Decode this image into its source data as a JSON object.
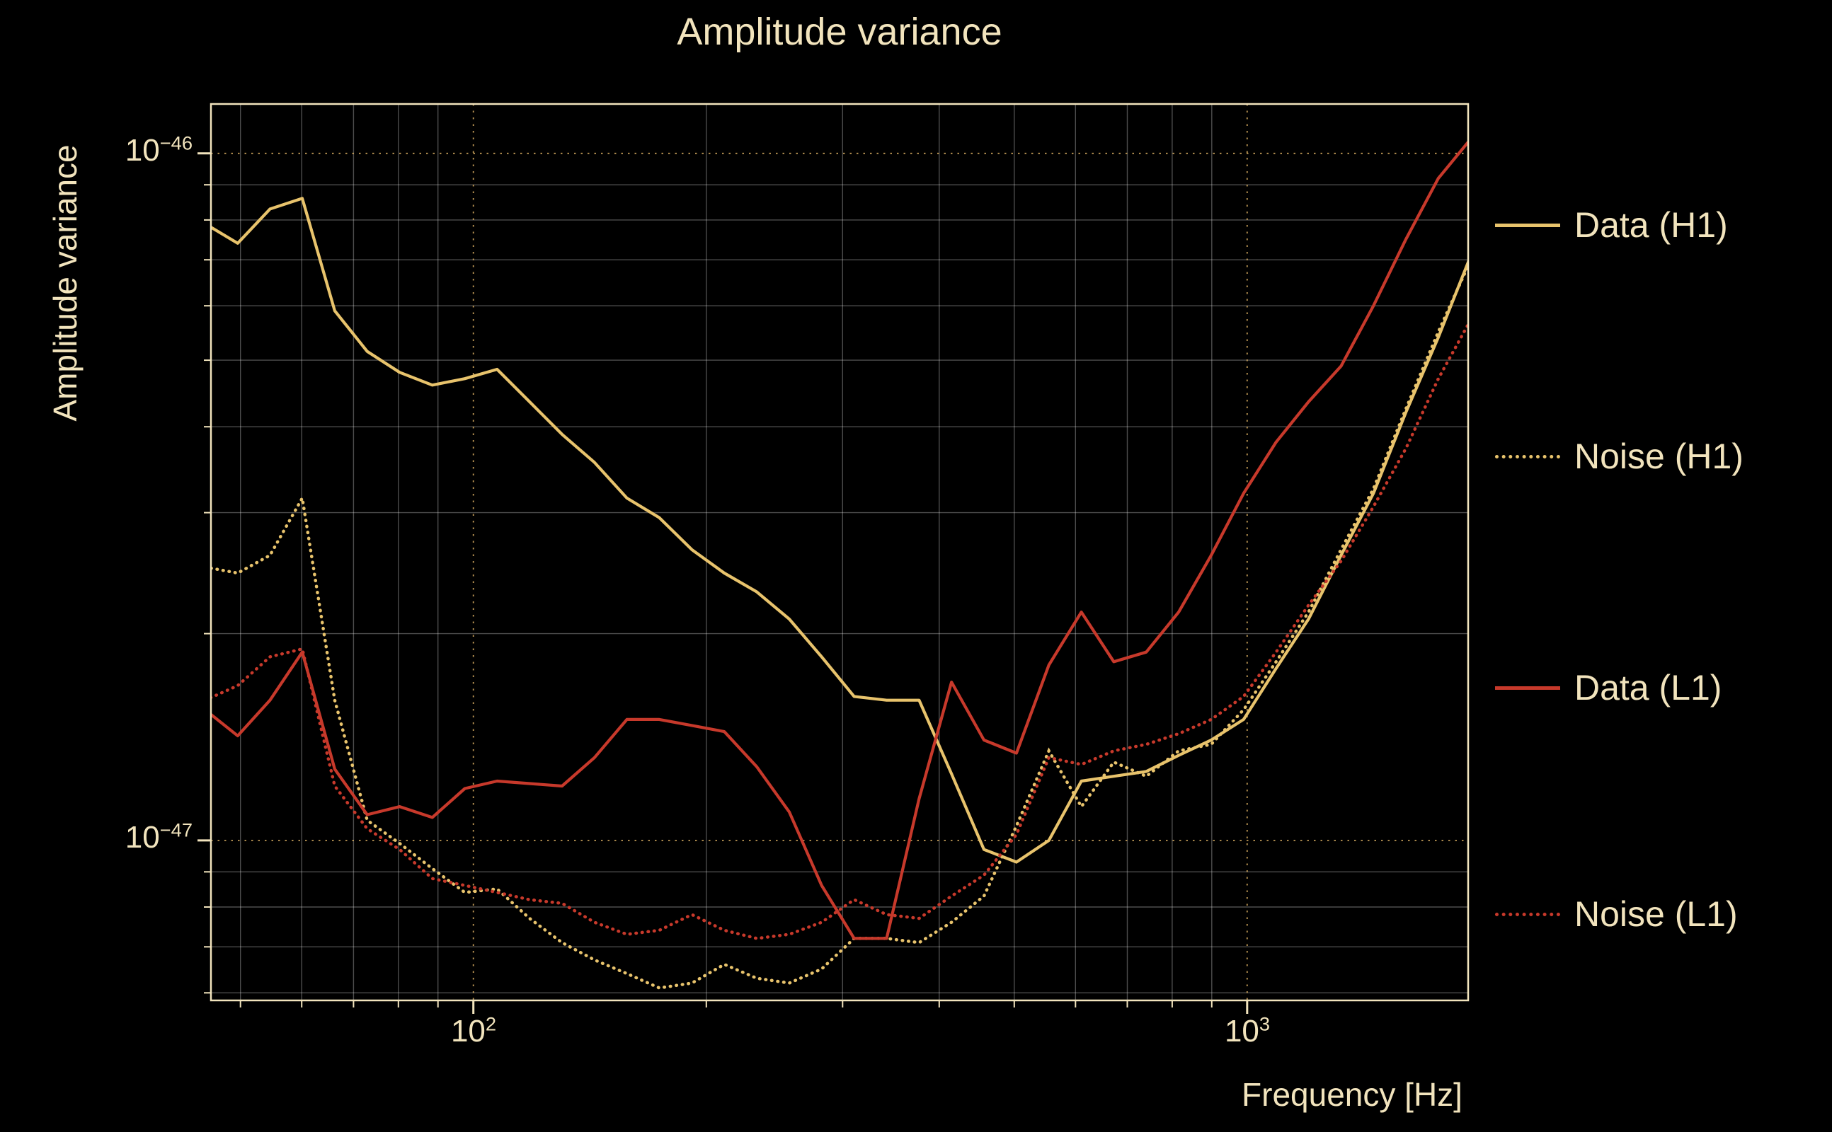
{
  "title": "Amplitude variance",
  "colors": {
    "background": "#000000",
    "text": "#f2e4bd",
    "frame": "#f2e4bd",
    "gold": "#e8c36c",
    "red": "#c7392b",
    "grid_minor": "rgba(255,255,255,0.30)",
    "grid_major": "rgba(222,178,100,0.85)"
  },
  "chart_data": {
    "type": "line",
    "title": "Amplitude variance",
    "xlabel": "Frequency [Hz]",
    "ylabel": "Amplitude variance",
    "x_scale": "log",
    "y_scale": "log",
    "grid": "both",
    "legend_position": "right-outside",
    "xlim": [
      45.8,
      1930
    ],
    "ylim": [
      5.85e-48,
      1.18e-46
    ],
    "x_ticks": [
      {
        "value": 100,
        "label_base": "10",
        "label_exp": "2"
      },
      {
        "value": 1000,
        "label_base": "10",
        "label_exp": "3"
      }
    ],
    "y_ticks": [
      {
        "value": 1e-46,
        "label_base": "10",
        "label_exp": "−46"
      },
      {
        "value": 1e-47,
        "label_base": "10",
        "label_exp": "−47"
      }
    ],
    "x": [
      45,
      49.6,
      54.6,
      60.1,
      66.2,
      72.9,
      80.3,
      88.5,
      97.5,
      107.3,
      118.2,
      130.2,
      143.4,
      157.9,
      173.9,
      191.6,
      211,
      232.4,
      256,
      281.9,
      310.5,
      342,
      376.7,
      414.9,
      456.9,
      503.3,
      554.3,
      610.5,
      672.4,
      740.6,
      815.7,
      898.4,
      989.5,
      1089.8,
      1200.3,
      1322,
      1456.1,
      1603.7,
      1766.3,
      1945.4
    ],
    "series": [
      {
        "name": "Data (H1)",
        "color": "#e8c36c",
        "style": "solid",
        "values": [
          7.9e-47,
          7.4e-47,
          8.3e-47,
          8.6e-47,
          5.9e-47,
          5.15e-47,
          4.8e-47,
          4.6e-47,
          4.7e-47,
          4.85e-47,
          4.35e-47,
          3.9e-47,
          3.55e-47,
          3.15e-47,
          2.95e-47,
          2.65e-47,
          2.45e-47,
          2.3e-47,
          2.1e-47,
          1.85e-47,
          1.62e-47,
          1.6e-47,
          1.6e-47,
          1.25e-47,
          9.7e-48,
          9.3e-48,
          1e-47,
          1.22e-47,
          1.24e-47,
          1.26e-47,
          1.33e-47,
          1.4e-47,
          1.5e-47,
          1.78e-47,
          2.1e-47,
          2.6e-47,
          3.2e-47,
          4.2e-47,
          5.4e-47,
          7.1e-47
        ]
      },
      {
        "name": "Noise (H1)",
        "color": "#e8c36c",
        "style": "dotted",
        "values": [
          2.5e-47,
          2.45e-47,
          2.6e-47,
          3.15e-47,
          1.6e-47,
          1.07e-47,
          9.9e-48,
          9.1e-48,
          8.4e-48,
          8.5e-48,
          7.7e-48,
          7.1e-48,
          6.7e-48,
          6.4e-48,
          6.1e-48,
          6.2e-48,
          6.6e-48,
          6.3e-48,
          6.2e-48,
          6.5e-48,
          7.2e-48,
          7.2e-48,
          7.1e-48,
          7.6e-48,
          8.3e-48,
          1.05e-47,
          1.35e-47,
          1.12e-47,
          1.3e-47,
          1.24e-47,
          1.35e-47,
          1.38e-47,
          1.55e-47,
          1.82e-47,
          2.15e-47,
          2.65e-47,
          3.25e-47,
          4.25e-47,
          5.5e-47,
          7e-47
        ]
      },
      {
        "name": "Data (L1)",
        "color": "#c7392b",
        "style": "solid",
        "values": [
          1.55e-47,
          1.42e-47,
          1.6e-47,
          1.88e-47,
          1.27e-47,
          1.09e-47,
          1.12e-47,
          1.08e-47,
          1.19e-47,
          1.22e-47,
          1.21e-47,
          1.2e-47,
          1.32e-47,
          1.5e-47,
          1.5e-47,
          1.47e-47,
          1.44e-47,
          1.28e-47,
          1.1e-47,
          8.6e-48,
          7.2e-48,
          7.2e-48,
          1.15e-47,
          1.7e-47,
          1.4e-47,
          1.34e-47,
          1.8e-47,
          2.15e-47,
          1.82e-47,
          1.88e-47,
          2.15e-47,
          2.6e-47,
          3.2e-47,
          3.8e-47,
          4.35e-47,
          4.9e-47,
          6e-47,
          7.5e-47,
          9.2e-47,
          1.05e-46
        ]
      },
      {
        "name": "Noise (L1)",
        "color": "#c7392b",
        "style": "dotted",
        "values": [
          1.6e-47,
          1.68e-47,
          1.85e-47,
          1.9e-47,
          1.2e-47,
          1.04e-47,
          9.7e-48,
          8.8e-48,
          8.6e-48,
          8.4e-48,
          8.2e-48,
          8.1e-48,
          7.6e-48,
          7.3e-48,
          7.4e-48,
          7.8e-48,
          7.4e-48,
          7.2e-48,
          7.3e-48,
          7.6e-48,
          8.2e-48,
          7.8e-48,
          7.7e-48,
          8.3e-48,
          8.9e-48,
          1.02e-47,
          1.32e-47,
          1.29e-47,
          1.35e-47,
          1.38e-47,
          1.43e-47,
          1.5e-47,
          1.62e-47,
          1.88e-47,
          2.2e-47,
          2.55e-47,
          3.06e-47,
          3.72e-47,
          4.7e-47,
          5.73e-47
        ]
      }
    ]
  }
}
